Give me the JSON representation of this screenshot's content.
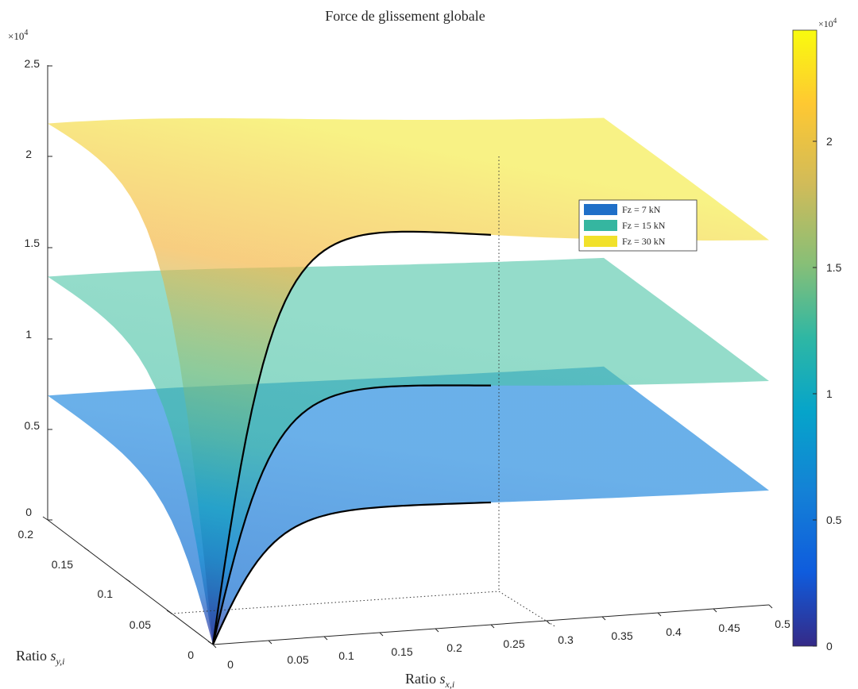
{
  "chart_data": {
    "type": "surface",
    "title": "Force de glissement globale",
    "xlabel": "Ratio s_{x,i}",
    "ylabel": "Ratio s_{y,i}",
    "z_multiplier": "×10",
    "z_exponent": "4",
    "xlim": [
      0,
      0.5
    ],
    "ylim": [
      0,
      0.2
    ],
    "zlim": [
      0,
      2.5
    ],
    "x_ticks": [
      "0",
      "0.05",
      "0.1",
      "0.15",
      "0.2",
      "0.25",
      "0.3",
      "0.35",
      "0.4",
      "0.45",
      "0.5"
    ],
    "y_ticks": [
      "0",
      "0.05",
      "0.1",
      "0.15",
      "0.2"
    ],
    "z_ticks": [
      "0",
      "0.5",
      "1",
      "1.5",
      "2",
      "2.5"
    ],
    "colorbar": {
      "colormap": "parula",
      "ticks": [
        "0",
        "0.5",
        "1",
        "1.5",
        "2"
      ],
      "range": [
        0,
        2.3
      ],
      "multiplier": "×10",
      "exponent": "4"
    },
    "legend": {
      "placement": "upper-right-inside",
      "entries": [
        {
          "label": "Fz = 7 kN",
          "color": "#1f6fc8"
        },
        {
          "label": "Fz = 15 kN",
          "color": "#35b6a0"
        },
        {
          "label": "Fz = 30 kN",
          "color": "#f1e12b"
        }
      ]
    },
    "series": [
      {
        "label": "Fz = 7 kN",
        "saturation_force": 0.69,
        "plateau_at_sx_0.25": 0.68
      },
      {
        "label": "Fz = 15 kN",
        "saturation_force": 1.35,
        "plateau_at_sx_0.25": 1.33
      },
      {
        "label": "Fz = 30 kN",
        "saturation_force": 2.2,
        "plateau_at_sx_0.25": 2.18
      }
    ],
    "marker_line": {
      "sx": 0.25,
      "sy": 0.05
    },
    "curve_sy": 0,
    "curve_sx_range": [
      0,
      0.25
    ]
  }
}
